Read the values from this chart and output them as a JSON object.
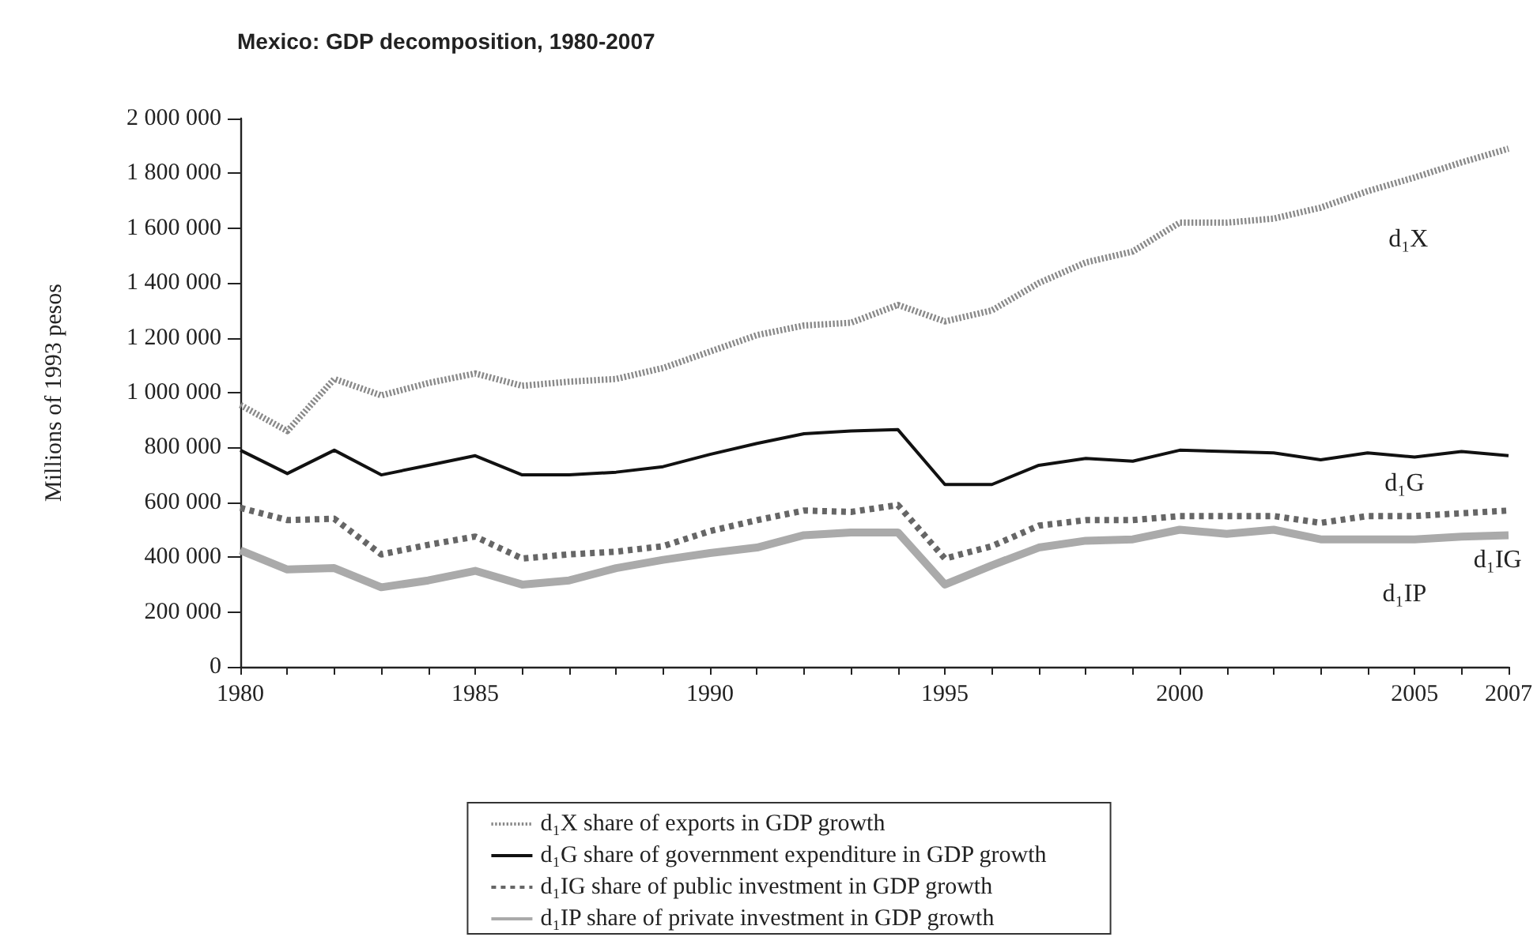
{
  "chart_data": {
    "type": "line",
    "title": "Mexico: GDP decomposition, 1980-2007",
    "ylabel": "Millions of 1993 pesos",
    "x": [
      1980,
      1981,
      1982,
      1983,
      1984,
      1985,
      1986,
      1987,
      1988,
      1989,
      1990,
      1991,
      1992,
      1993,
      1994,
      1995,
      1996,
      1997,
      1998,
      1999,
      2000,
      2001,
      2002,
      2003,
      2004,
      2005,
      2006,
      2007
    ],
    "series": [
      {
        "name": "d₁X share of exports in GDP growth",
        "color": "#8a8a8a",
        "line_style": "dotted",
        "values": [
          955000,
          860000,
          1050000,
          990000,
          1035000,
          1070000,
          1025000,
          1040000,
          1050000,
          1090000,
          1150000,
          1210000,
          1245000,
          1255000,
          1320000,
          1260000,
          1300000,
          1400000,
          1475000,
          1515000,
          1620000,
          1620000,
          1635000,
          1675000,
          1735000,
          1785000,
          1840000,
          1890000
        ]
      },
      {
        "name": "d₁G share of government expenditure in GDP growth",
        "color": "#111111",
        "line_style": "solid",
        "values": [
          790000,
          705000,
          790000,
          700000,
          735000,
          770000,
          700000,
          700000,
          710000,
          730000,
          775000,
          815000,
          850000,
          860000,
          865000,
          665000,
          665000,
          735000,
          760000,
          750000,
          790000,
          785000,
          780000,
          755000,
          780000,
          765000,
          785000,
          770000
        ]
      },
      {
        "name": "d₁IG share of public investment in GDP growth",
        "color": "#666666",
        "line_style": "dashed",
        "values": [
          580000,
          535000,
          540000,
          410000,
          445000,
          475000,
          395000,
          410000,
          420000,
          440000,
          495000,
          535000,
          570000,
          565000,
          590000,
          395000,
          440000,
          515000,
          535000,
          535000,
          550000,
          550000,
          550000,
          525000,
          550000,
          550000,
          560000,
          570000
        ]
      },
      {
        "name": "d₁IP share of private investment in GDP growth",
        "color": "#aaaaaa",
        "line_style": "solid",
        "values": [
          425000,
          355000,
          360000,
          290000,
          315000,
          350000,
          300000,
          315000,
          360000,
          390000,
          415000,
          435000,
          480000,
          490000,
          490000,
          300000,
          370000,
          435000,
          460000,
          465000,
          500000,
          485000,
          500000,
          465000,
          465000,
          465000,
          475000,
          480000
        ]
      }
    ],
    "xlim": [
      1980,
      2007
    ],
    "xticks": [
      1980,
      {
        "value": 1981,
        "label": null
      },
      {
        "value": 1982,
        "label": null
      },
      {
        "value": 1983,
        "label": null
      },
      {
        "value": 1984,
        "label": null
      },
      1985,
      {
        "value": 1986,
        "label": null
      },
      {
        "value": 1987,
        "label": null
      },
      {
        "value": 1988,
        "label": null
      },
      {
        "value": 1989,
        "label": null
      },
      1990,
      {
        "value": 1991,
        "label": null
      },
      {
        "value": 1992,
        "label": null
      },
      {
        "value": 1993,
        "label": null
      },
      {
        "value": 1994,
        "label": null
      },
      1995,
      {
        "value": 1996,
        "label": null
      },
      {
        "value": 1997,
        "label": null
      },
      {
        "value": 1998,
        "label": null
      },
      {
        "value": 1999,
        "label": null
      },
      2000,
      {
        "value": 2001,
        "label": null
      },
      {
        "value": 2002,
        "label": null
      },
      {
        "value": 2003,
        "label": null
      },
      {
        "value": 2004,
        "label": null
      },
      2005,
      {
        "value": 2006,
        "label": null
      },
      2007
    ],
    "ylim": [
      0,
      2000000
    ],
    "yticks": [
      0,
      {
        "value": 200000,
        "label": "200 000"
      },
      {
        "value": 400000,
        "label": "400 000"
      },
      {
        "value": 600000,
        "label": "600 000"
      },
      {
        "value": 800000,
        "label": "800 000"
      },
      {
        "value": 1000000,
        "label": "1 000 000"
      },
      {
        "value": 1200000,
        "label": "1 200 000"
      },
      {
        "value": 1400000,
        "label": "1 400 000"
      },
      {
        "value": 1600000,
        "label": "1 600 000"
      },
      {
        "value": 1800000,
        "label": "1 800 000"
      },
      {
        "value": 2000000,
        "label": "2 000 000"
      }
    ],
    "annotations": [
      "d₁X",
      "d₁G",
      "d₁IG",
      "d₁IP"
    ],
    "grid": false,
    "legend": "bottom",
    "marker": "none"
  }
}
